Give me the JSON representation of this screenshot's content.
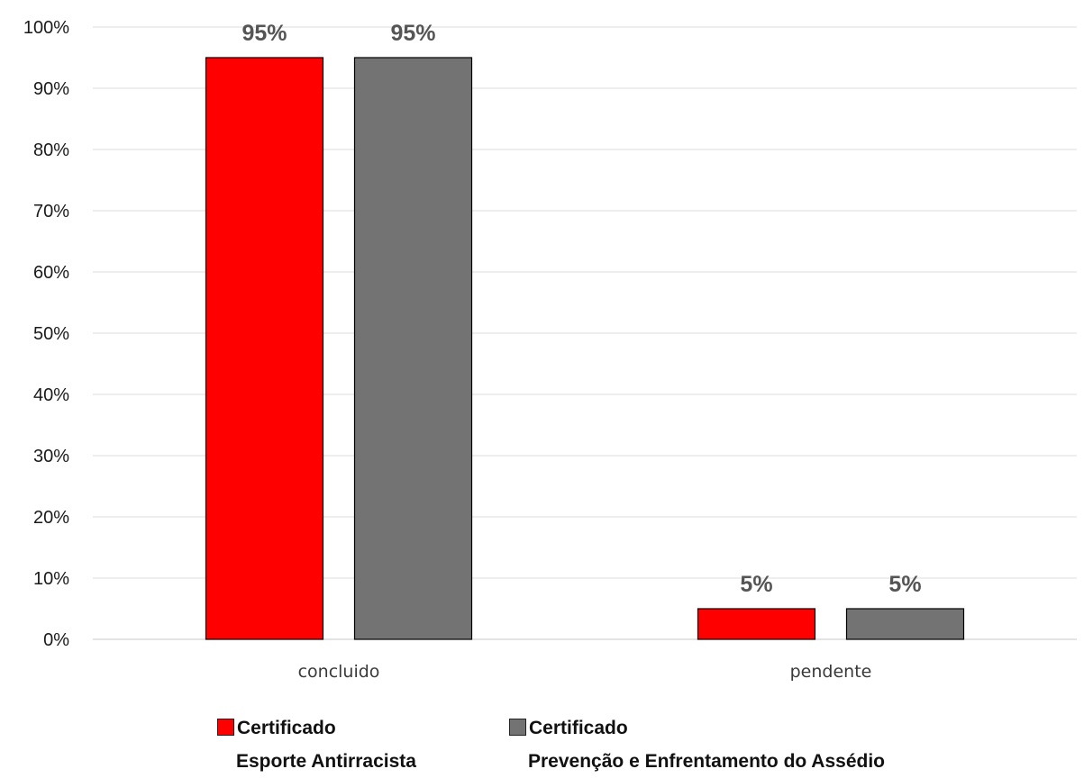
{
  "chart_data": {
    "type": "bar",
    "categories": [
      "concluido",
      "pendente"
    ],
    "series": [
      {
        "name": "Certificado\nEsporte Antirracista",
        "values": [
          95,
          5
        ],
        "labels": [
          "95%",
          "5%"
        ],
        "color": "#ff0000"
      },
      {
        "name": "Certificado\nPrevenção e Enfrentamento do Assédio",
        "values": [
          95,
          5
        ],
        "labels": [
          "95%",
          "5%"
        ],
        "color": "#737373"
      }
    ],
    "ylim": [
      0,
      100
    ],
    "yticks": [
      "0%",
      "10%",
      "20%",
      "30%",
      "40%",
      "50%",
      "60%",
      "70%",
      "80%",
      "90%",
      "100%"
    ],
    "grid": true,
    "legend": "bottom"
  },
  "legend": {
    "items": [
      {
        "line1": "Certificado",
        "line2": "Esporte Antirracista",
        "color": "#ff0000"
      },
      {
        "line1": "Certificado",
        "line2": "Prevenção e Enfrentamento do Assédio",
        "color": "#737373"
      }
    ]
  }
}
